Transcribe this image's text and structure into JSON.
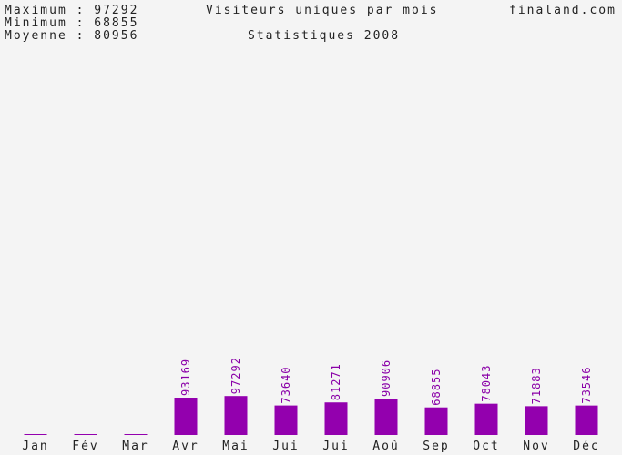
{
  "stats": {
    "max_line": "Maximum : 97292",
    "min_line": "Minimum : 68855",
    "avg_line": "Moyenne : 80956"
  },
  "header": {
    "title": "Visiteurs uniques par mois",
    "site": "finaland.com",
    "subtitle": "Statistiques 2008"
  },
  "colors": {
    "bar": "#9300ae",
    "label": "#8a00a8",
    "background": "#f4f4f4",
    "text": "#222222"
  },
  "chart_data": {
    "type": "bar",
    "title": "Visiteurs uniques par mois",
    "subtitle": "Statistiques 2008",
    "categories": [
      "Jan",
      "Fév",
      "Mar",
      "Avr",
      "Mai",
      "Jui",
      "Jui",
      "Aoû",
      "Sep",
      "Oct",
      "Nov",
      "Déc"
    ],
    "values": [
      0,
      0,
      0,
      93169,
      97292,
      73640,
      81271,
      90906,
      68855,
      78043,
      71883,
      73546
    ],
    "value_labels": [
      "",
      "",
      "",
      "93169",
      "97292",
      "73640",
      "81271",
      "90906",
      "68855",
      "78043",
      "71883",
      "73546"
    ],
    "xlabel": "",
    "ylabel": "",
    "ylim": [
      0,
      1000000
    ],
    "grid": false,
    "legend": "none"
  }
}
